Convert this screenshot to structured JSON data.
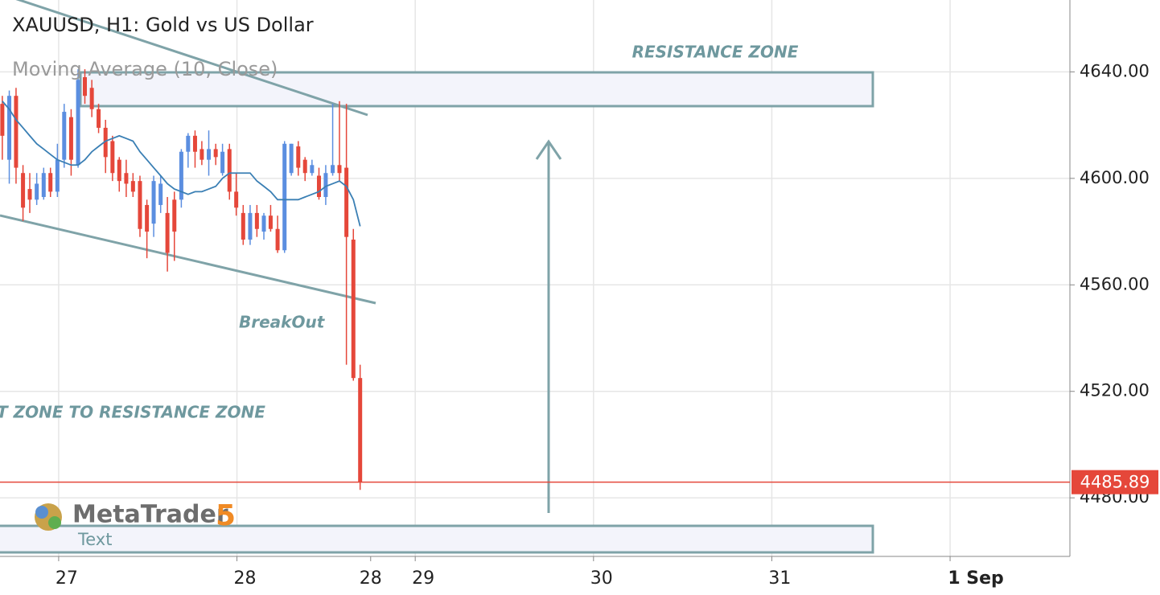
{
  "chart_data": {
    "type": "candlestick",
    "title": "XAUUSD, H1: Gold vs US Dollar",
    "x": [
      26.684,
      26.723,
      26.761,
      26.8,
      26.838,
      26.877,
      26.916,
      26.954,
      26.993,
      27.031,
      27.07,
      27.109,
      27.147,
      27.186,
      27.224,
      27.263,
      27.302,
      27.34,
      27.379,
      27.417,
      27.456,
      27.495,
      27.533,
      27.572,
      27.61,
      27.649,
      27.688,
      27.726,
      27.765,
      27.803,
      27.842,
      27.881,
      27.919,
      27.958,
      27.996,
      28.035,
      28.074,
      28.112,
      28.151,
      28.189,
      28.228,
      28.267,
      28.305,
      28.344,
      28.382,
      28.421,
      28.46,
      28.498,
      28.537,
      28.575,
      28.614,
      28.653,
      28.691
    ],
    "open": [
      4628,
      4607,
      4631,
      4602,
      4596,
      4592,
      4593,
      4602,
      4595,
      4607,
      4623,
      4605,
      4638,
      4634,
      4626,
      4619,
      4614,
      4607,
      4602,
      4599,
      4599,
      4590,
      4583,
      4590,
      4587,
      4592,
      4592,
      4610,
      4616,
      4611,
      4607,
      4611,
      4602,
      4611,
      4595,
      4587,
      4577,
      4587,
      4580,
      4586,
      4581,
      4573,
      4602,
      4612,
      4607,
      4602,
      4601,
      4593,
      4602,
      4605,
      4604,
      4577,
      4525
    ],
    "high": [
      4631,
      4633,
      4634,
      4605,
      4602,
      4602,
      4604,
      4604,
      4613,
      4628,
      4626,
      4641,
      4641,
      4637,
      4628,
      4622,
      4616,
      4608,
      4607,
      4602,
      4601,
      4592,
      4601,
      4601,
      4593,
      4595,
      4611,
      4617,
      4618,
      4614,
      4618,
      4613,
      4613,
      4613,
      4602,
      4590,
      4590,
      4590,
      4587,
      4590,
      4586,
      4614,
      4613,
      4614,
      4608,
      4607,
      4604,
      4605,
      4628,
      4629,
      4628,
      4581,
      4530
    ],
    "low": [
      4607,
      4598,
      4598,
      4584,
      4587,
      4590,
      4592,
      4593,
      4593,
      4604,
      4601,
      4604,
      4628,
      4623,
      4617,
      4602,
      4599,
      4595,
      4593,
      4593,
      4578,
      4570,
      4578,
      4587,
      4565,
      4569,
      4589,
      4604,
      4604,
      4605,
      4601,
      4605,
      4601,
      4592,
      4586,
      4575,
      4575,
      4578,
      4577,
      4580,
      4572,
      4572,
      4601,
      4601,
      4599,
      4601,
      4592,
      4590,
      4601,
      4599,
      4530,
      4524,
      4483
    ],
    "close": [
      4616,
      4631,
      4604,
      4589,
      4592,
      4598,
      4602,
      4595,
      4607,
      4625,
      4607,
      4637,
      4631,
      4626,
      4619,
      4608,
      4602,
      4599,
      4598,
      4595,
      4581,
      4580,
      4599,
      4598,
      4572,
      4580,
      4610,
      4616,
      4610,
      4607,
      4611,
      4608,
      4610,
      4595,
      4589,
      4577,
      4587,
      4581,
      4586,
      4581,
      4573,
      4613,
      4613,
      4604,
      4602,
      4605,
      4593,
      4602,
      4605,
      4602,
      4578,
      4525,
      4485.89
    ],
    "up_color": "#5b8ee0",
    "down_color": "#e5473a",
    "series": [
      {
        "name": "Moving Average (10, Close)",
        "color": "#3a7fb4",
        "values": [
          4629,
          4626,
          4622,
          4619,
          4616,
          4613,
          4611,
          4609,
          4607,
          4606,
          4605,
          4605,
          4607,
          4610,
          4612,
          4614,
          4615,
          4616,
          4615,
          4614,
          4610,
          4607,
          4604,
          4601,
          4598,
          4596,
          4595,
          4594,
          4595,
          4595,
          4596,
          4597,
          4600,
          4602,
          4602,
          4602,
          4602,
          4599,
          4597,
          4595,
          4592,
          4592,
          4592,
          4592,
          4593,
          4594,
          4595,
          4597,
          4598,
          4599,
          4597,
          4592,
          4582
        ]
      }
    ],
    "last_price": 4485.89,
    "last_price_color": "#e5473a",
    "ylim": [
      4458,
      4667
    ],
    "yticks": [
      {
        "value": 4480,
        "label": "4480.00"
      },
      {
        "value": 4520,
        "label": "4520.00"
      },
      {
        "value": 4560,
        "label": "4560.00"
      },
      {
        "value": 4600,
        "label": "4600.00"
      },
      {
        "value": 4640,
        "label": "4640.00"
      }
    ],
    "xlim": [
      26.671,
      32.672
    ],
    "xticks": [
      27,
      28,
      29,
      30,
      31,
      {
        "value": 32,
        "label": "1 Sep"
      }
    ],
    "time_marker": {
      "value": 28.75,
      "label": "28"
    },
    "grid": true,
    "annotations": {
      "resistance": "RESISTANCE ZONE",
      "breakout": "BreakOut",
      "zone_path": "T ZONE TO RESISTANCE ZONE",
      "logo": "MetaTrader",
      "logo_version": "5",
      "text_label": "Text"
    }
  }
}
